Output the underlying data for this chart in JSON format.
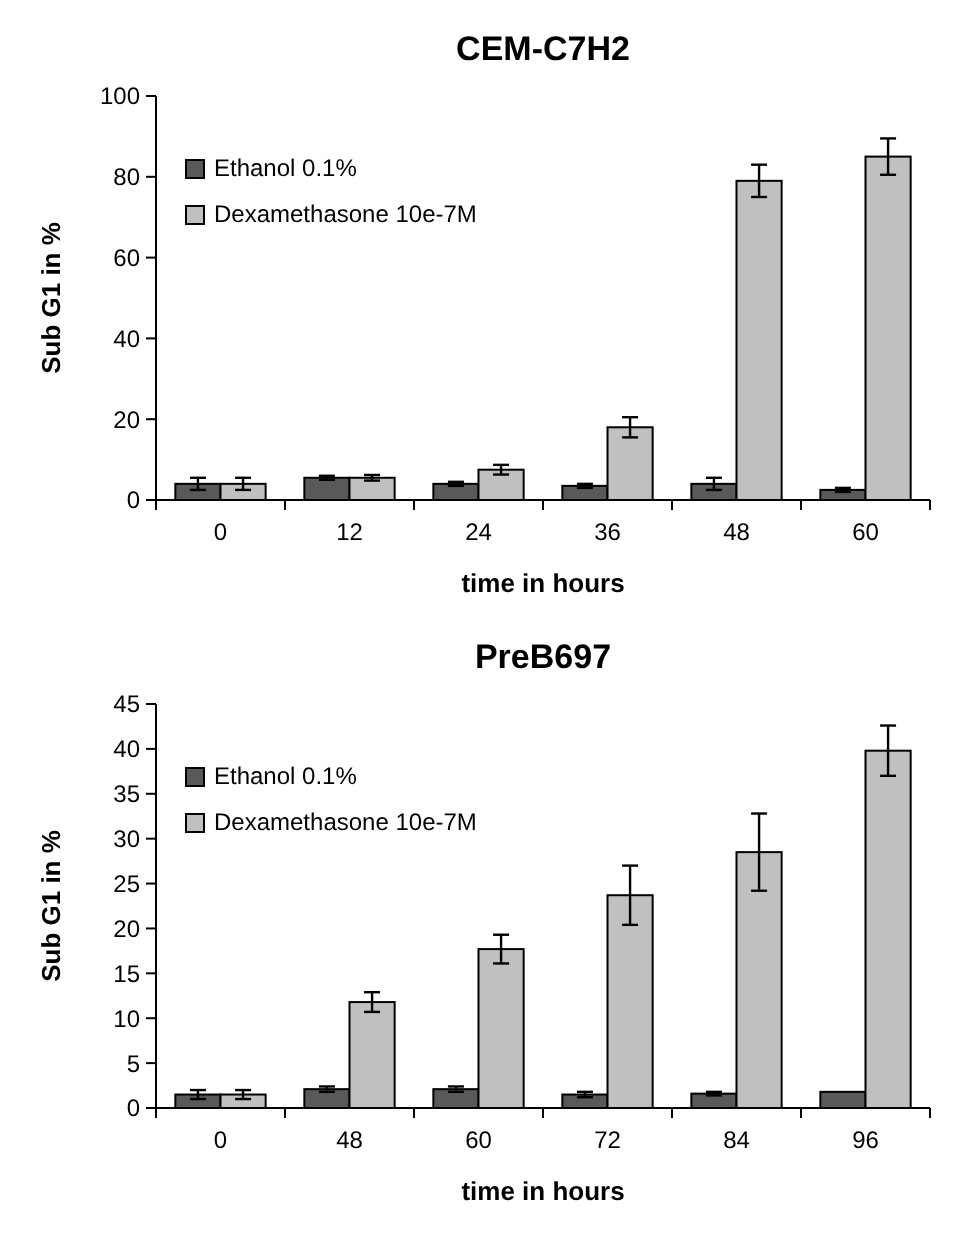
{
  "chart_data": [
    {
      "type": "bar",
      "title": "CEM-C7H2",
      "xlabel": "time in hours",
      "ylabel": "Sub G1 in %",
      "categories": [
        "0",
        "12",
        "24",
        "36",
        "48",
        "60"
      ],
      "ylim": [
        0,
        100
      ],
      "yticks": [
        0,
        20,
        40,
        60,
        80,
        100
      ],
      "grid": false,
      "legend": "top left",
      "series": [
        {
          "name": "Ethanol 0.1%",
          "color": "#595959",
          "values": [
            4,
            5.5,
            4,
            3.5,
            4,
            2.5
          ],
          "errors": [
            1.5,
            0.5,
            0.5,
            0.5,
            1.5,
            0.5
          ]
        },
        {
          "name": "Dexamethasone 10e-7M",
          "color": "#c0c0c0",
          "values": [
            4,
            5.5,
            7.5,
            18,
            79,
            85
          ],
          "errors": [
            1.5,
            0.7,
            1.2,
            2.5,
            4,
            4.5
          ]
        }
      ]
    },
    {
      "type": "bar",
      "title": "PreB697",
      "xlabel": "time in hours",
      "ylabel": "Sub G1 in %",
      "categories": [
        "0",
        "48",
        "60",
        "72",
        "84",
        "96"
      ],
      "ylim": [
        0,
        45
      ],
      "yticks": [
        0,
        5,
        10,
        15,
        20,
        25,
        30,
        35,
        40,
        45
      ],
      "grid": false,
      "legend": "top left",
      "series": [
        {
          "name": "Ethanol 0.1%",
          "color": "#595959",
          "values": [
            1.5,
            2.1,
            2.1,
            1.5,
            1.6,
            1.8
          ],
          "errors": [
            0.5,
            0.3,
            0.3,
            0.3,
            0.2,
            null
          ]
        },
        {
          "name": "Dexamethasone 10e-7M",
          "color": "#c0c0c0",
          "values": [
            1.5,
            11.8,
            17.7,
            23.7,
            28.5,
            39.8
          ],
          "errors": [
            0.5,
            1.1,
            1.6,
            3.3,
            4.3,
            2.8
          ]
        }
      ]
    }
  ]
}
